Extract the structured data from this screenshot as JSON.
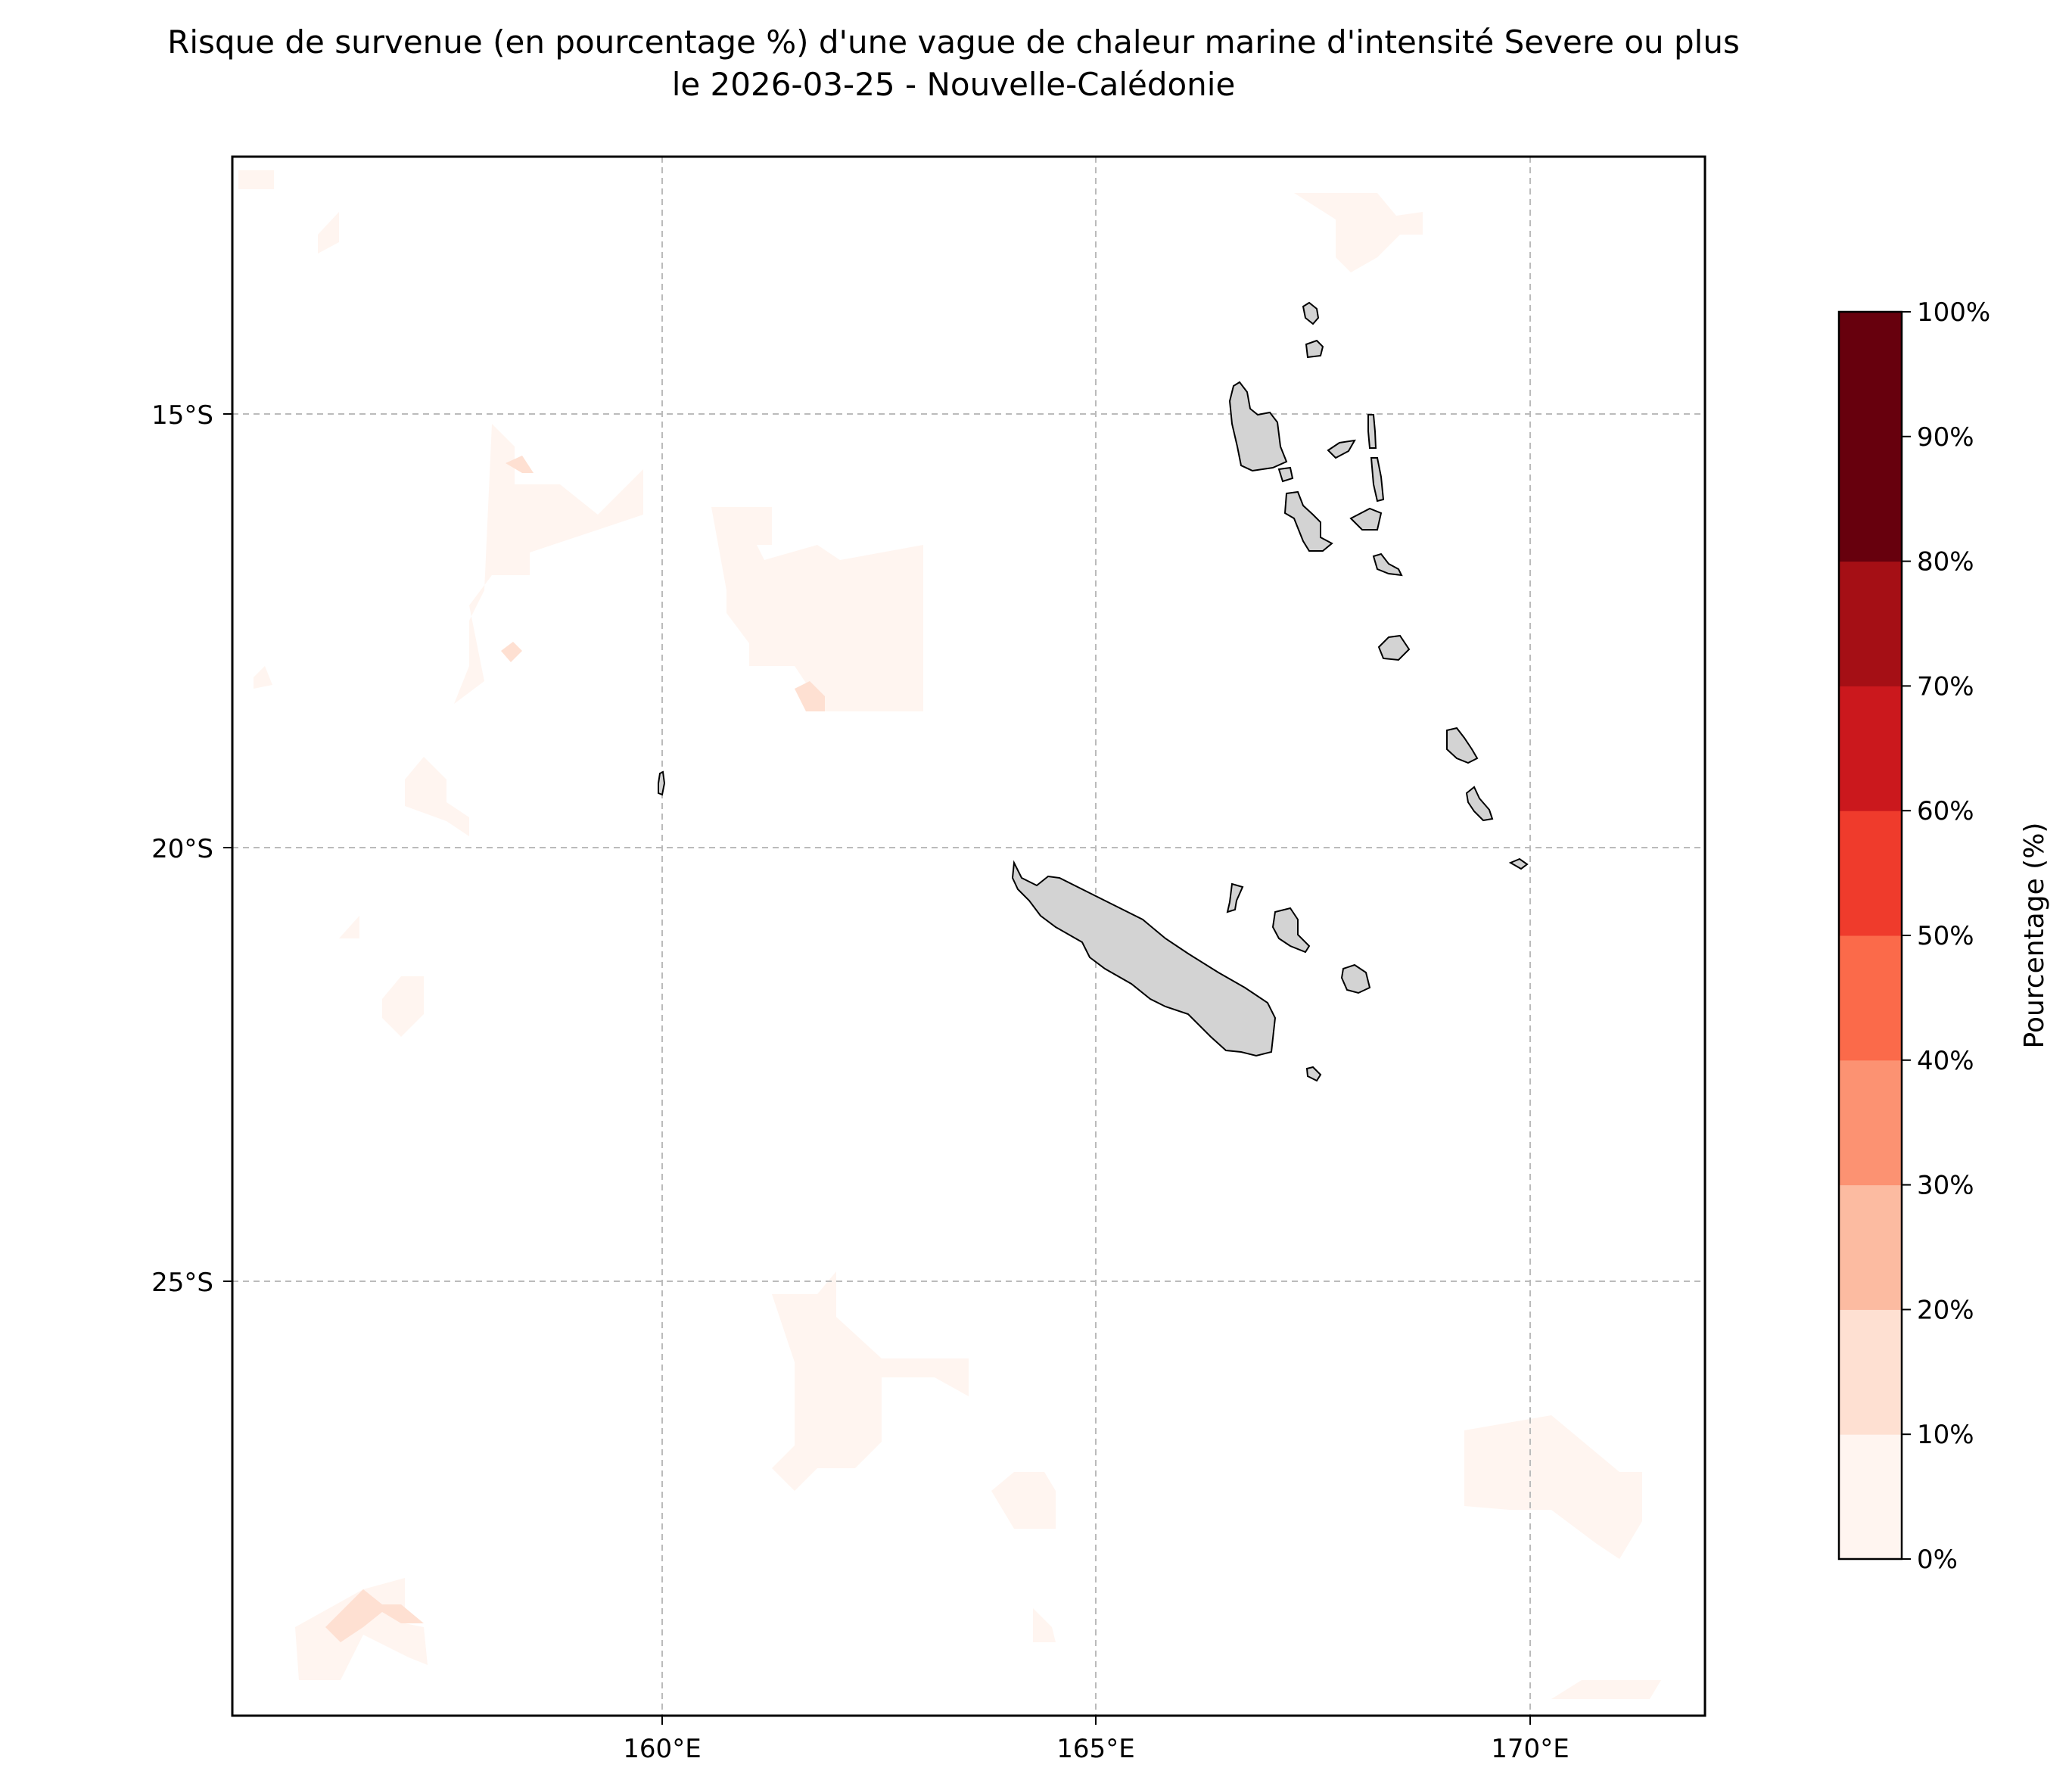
{
  "title": {
    "line1": "Risque de survenue (en pourcentage %) d'une vague de chaleur marine d'intensité Severe ou plus",
    "line2": "le 2026-03-25 - Nouvelle-Calédonie"
  },
  "map": {
    "lon_range": [
      155,
      172
    ],
    "lat_range": [
      -30,
      -12
    ],
    "lon_ticks": [
      {
        "value": 160,
        "label": "160°E"
      },
      {
        "value": 165,
        "label": "165°E"
      },
      {
        "value": 170,
        "label": "170°E"
      }
    ],
    "lat_ticks": [
      {
        "value": -15,
        "label": "15°S"
      },
      {
        "value": -20,
        "label": "20°S"
      },
      {
        "value": -25,
        "label": "25°S"
      }
    ],
    "gridlines": true,
    "land_color": "#d3d3d3",
    "ocean_color": "#ffffff",
    "risk_patches_note_level": "0-10% and 10-20% bands",
    "colors": {
      "band_0_10": "#fff5f0",
      "band_10_20": "#fee0d2"
    }
  },
  "colorbar": {
    "label": "Pourcentage (%)",
    "ticks": [
      "0%",
      "10%",
      "20%",
      "30%",
      "40%",
      "50%",
      "60%",
      "70%",
      "80%",
      "90%",
      "100%"
    ],
    "colors": [
      "#fff5f0",
      "#fee0d2",
      "#fcbba1",
      "#fc9272",
      "#fb6a4a",
      "#ef3b2c",
      "#cb181d",
      "#a50f15",
      "#67000d",
      "#67000d"
    ]
  }
}
